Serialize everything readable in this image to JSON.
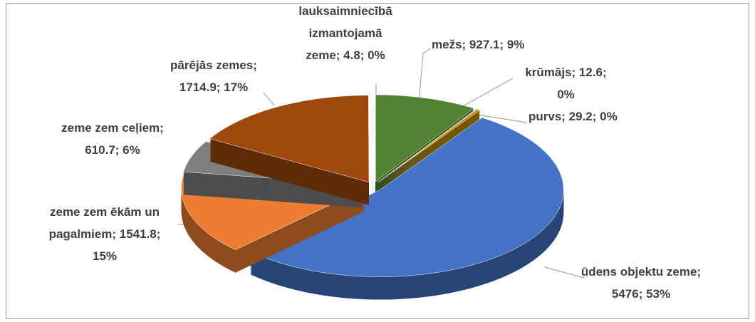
{
  "chart_data": {
    "type": "pie3d",
    "categories": [
      "mežs",
      "krūmājs",
      "purvs",
      "ūdens objektu zeme",
      "zeme zem ēkām un pagalmiem",
      "zeme zem ceļiem",
      "pārējās zemes",
      "lauksaimniecībā izmantojamā zeme"
    ],
    "values": [
      927.1,
      12.6,
      29.2,
      5476,
      1541.8,
      610.7,
      1714.9,
      4.8
    ],
    "value_labels": [
      "mežs; 927.1; 9%",
      "krūmājs; 12.6; 0%",
      "purvs; 29.2; 0%",
      "ūdens objektu zeme; 5476; 53%",
      "zeme zem ēkām un pagalmiem; 1541.8; 15%",
      "zeme zem ceļiem; 610.7; 6%",
      "pārējās zemes; 1714.9; 17%",
      "lauksaimniecībā izmantojamā zeme; 4.8; 0%"
    ],
    "colors": [
      "#548235",
      "#a5a5a5",
      "#bf8f00",
      "#4472c4",
      "#ed7d31",
      "#7f7f7f",
      "#9e480e",
      "#f2f2f2"
    ]
  }
}
